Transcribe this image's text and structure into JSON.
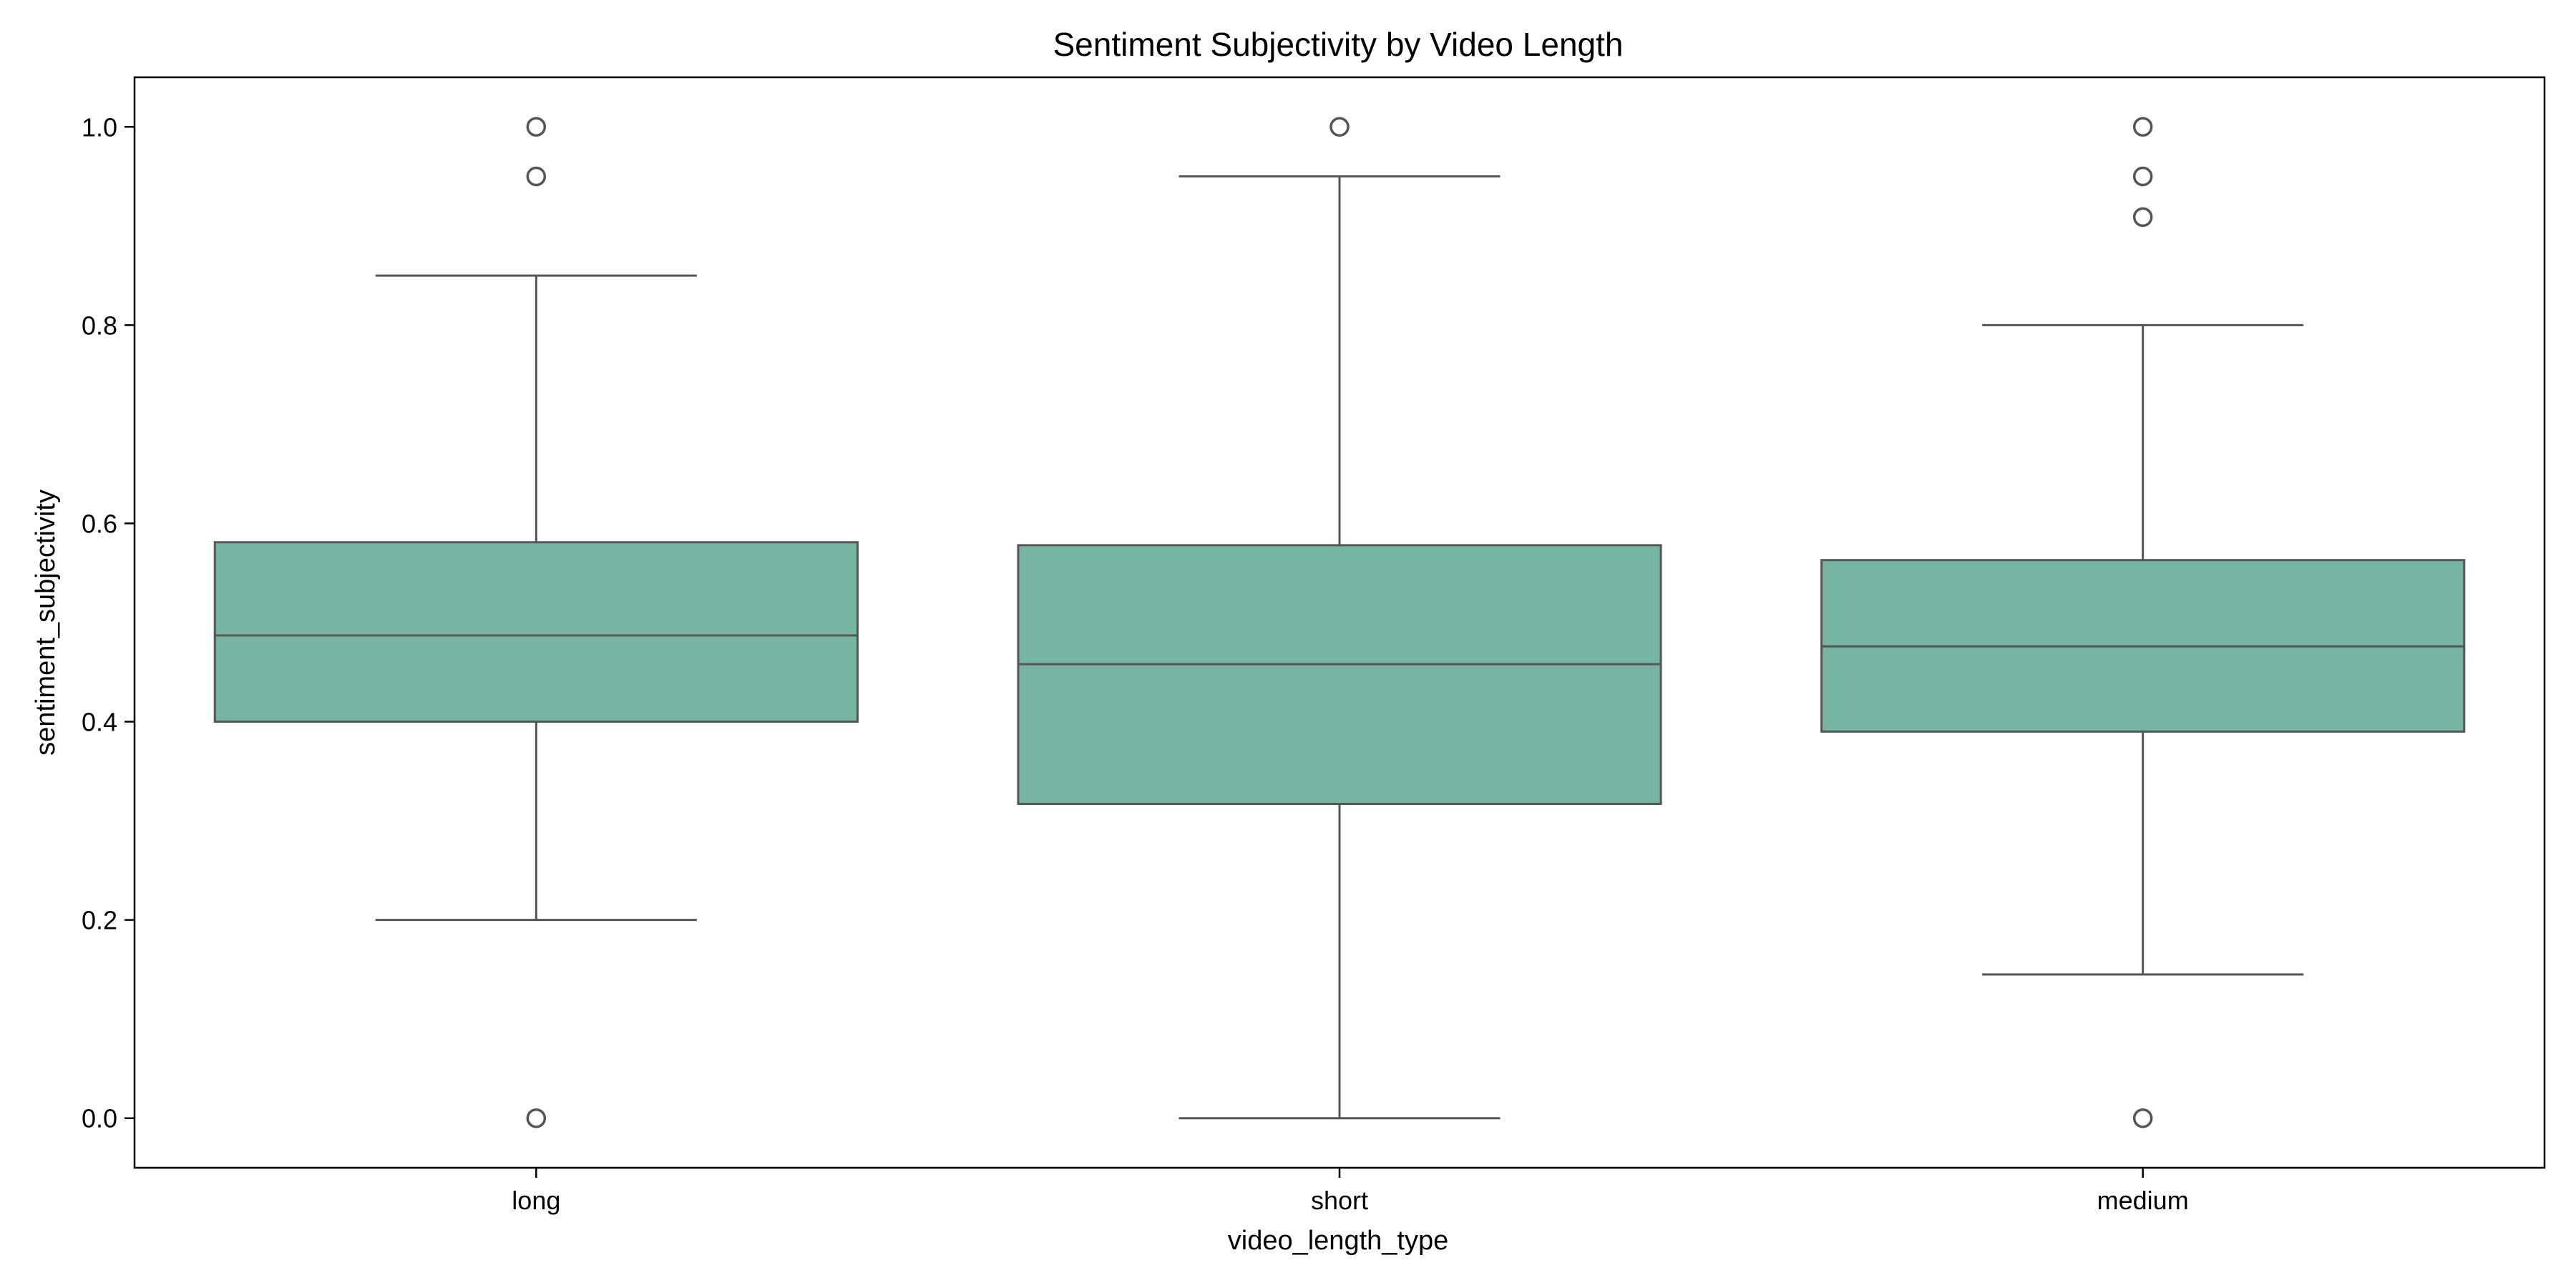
{
  "chart_data": {
    "type": "box",
    "title": "Sentiment Subjectivity by Video Length",
    "xlabel": "video_length_type",
    "ylabel": "sentiment_subjectivity",
    "categories": [
      "long",
      "short",
      "medium"
    ],
    "ylim": [
      -0.05,
      1.05
    ],
    "yticks": [
      0.0,
      0.2,
      0.4,
      0.6,
      0.8,
      1.0
    ],
    "ytick_labels": [
      "0.0",
      "0.2",
      "0.4",
      "0.6",
      "0.8",
      "1.0"
    ],
    "grid": false,
    "box_color": "#75b5a1",
    "line_color": "#555555",
    "boxes": [
      {
        "category": "long",
        "whisker_low": 0.2,
        "q1": 0.4,
        "median": 0.487,
        "q3": 0.581,
        "whisker_high": 0.85,
        "outliers": [
          0.0,
          0.95,
          1.0
        ]
      },
      {
        "category": "short",
        "whisker_low": 0.0,
        "q1": 0.317,
        "median": 0.458,
        "q3": 0.578,
        "whisker_high": 0.95,
        "outliers": [
          1.0
        ]
      },
      {
        "category": "medium",
        "whisker_low": 0.145,
        "q1": 0.39,
        "median": 0.476,
        "q3": 0.563,
        "whisker_high": 0.8,
        "outliers": [
          0.0,
          0.909,
          0.95,
          1.0
        ]
      }
    ]
  }
}
